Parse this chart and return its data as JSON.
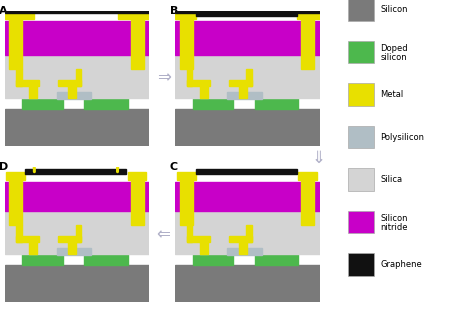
{
  "colors": {
    "silicon": "#7a7a7a",
    "doped_silicon": "#4db84d",
    "metal": "#e8e000",
    "polysilicon": "#b0bec5",
    "silica": "#d4d4d4",
    "silicon_nitride": "#c800c8",
    "graphene": "#111111",
    "background": "#ffffff",
    "arrow_fill": "#e0e0ec",
    "arrow_edge": "#a0a0b8"
  },
  "legend": {
    "items": [
      "Silicon",
      "Doped\nsilicon",
      "Metal",
      "Polysilicon",
      "Silica",
      "Silicon\nnitride",
      "Graphene"
    ],
    "colors": [
      "#7a7a7a",
      "#4db84d",
      "#e8e000",
      "#b0bec5",
      "#d4d4d4",
      "#c800c8",
      "#111111"
    ]
  }
}
